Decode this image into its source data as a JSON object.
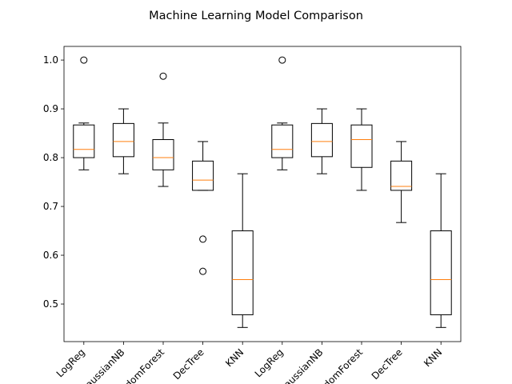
{
  "chart_data": {
    "type": "box",
    "title": "Machine Learning Model Comparison",
    "xlabel": "",
    "ylabel": "",
    "ylim": [
      0.423,
      1.028
    ],
    "yticks": [
      0.5,
      0.6,
      0.7,
      0.8,
      0.9,
      1.0
    ],
    "ytick_labels": [
      "0.5",
      "0.6",
      "0.7",
      "0.8",
      "0.9",
      "1.0"
    ],
    "grid": false,
    "categories": [
      "LogReg",
      "GaussianNB",
      "RandomForest",
      "DecTree",
      "KNN",
      "LogReg",
      "GaussianNB",
      "RandomForest",
      "DecTree",
      "KNN"
    ],
    "boxes": [
      {
        "label": "LogReg",
        "whislo": 0.775,
        "q1": 0.8,
        "med": 0.817,
        "q3": 0.867,
        "whishi": 0.871,
        "fliers": [
          1.0
        ]
      },
      {
        "label": "GaussianNB",
        "whislo": 0.767,
        "q1": 0.802,
        "med": 0.833,
        "q3": 0.87,
        "whishi": 0.9,
        "fliers": []
      },
      {
        "label": "RandomForest",
        "whislo": 0.741,
        "q1": 0.775,
        "med": 0.8,
        "q3": 0.837,
        "whishi": 0.871,
        "fliers": [
          0.967
        ]
      },
      {
        "label": "DecTree",
        "whislo": 0.733,
        "q1": 0.733,
        "med": 0.754,
        "q3": 0.793,
        "whishi": 0.833,
        "fliers": [
          0.633,
          0.567
        ]
      },
      {
        "label": "KNN",
        "whislo": 0.452,
        "q1": 0.478,
        "med": 0.55,
        "q3": 0.65,
        "whishi": 0.767,
        "fliers": []
      },
      {
        "label": "LogReg",
        "whislo": 0.775,
        "q1": 0.8,
        "med": 0.817,
        "q3": 0.867,
        "whishi": 0.871,
        "fliers": [
          1.0
        ]
      },
      {
        "label": "GaussianNB",
        "whislo": 0.767,
        "q1": 0.802,
        "med": 0.833,
        "q3": 0.87,
        "whishi": 0.9,
        "fliers": []
      },
      {
        "label": "RandomForest",
        "whislo": 0.733,
        "q1": 0.78,
        "med": 0.837,
        "q3": 0.867,
        "whishi": 0.9,
        "fliers": []
      },
      {
        "label": "DecTree",
        "whislo": 0.667,
        "q1": 0.733,
        "med": 0.741,
        "q3": 0.793,
        "whishi": 0.833,
        "fliers": []
      },
      {
        "label": "KNN",
        "whislo": 0.452,
        "q1": 0.478,
        "med": 0.55,
        "q3": 0.65,
        "whishi": 0.767,
        "fliers": []
      }
    ],
    "colors": {
      "box": "#000000",
      "median": "#ff7f0e",
      "flier": "#000000"
    }
  }
}
